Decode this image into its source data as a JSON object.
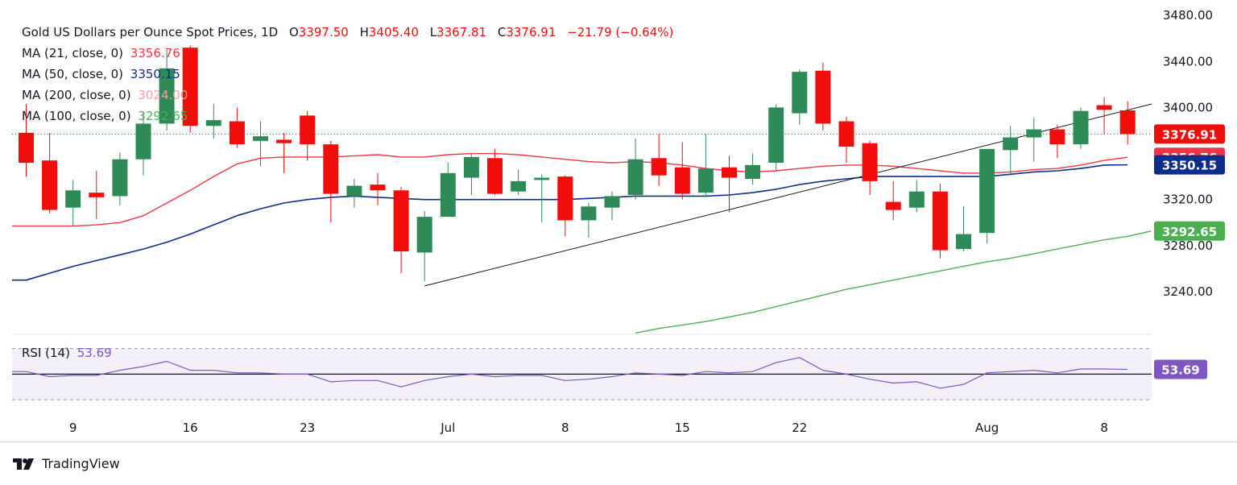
{
  "header": {
    "symbol": "Gold US Dollars per Ounce Spot Prices, 1D",
    "ohlc": {
      "o_label": "O",
      "o_value": "3397.50",
      "h_label": "H",
      "h_value": "3405.40",
      "l_label": "L",
      "l_value": "3367.81",
      "c_label": "C",
      "c_value": "3376.91",
      "change": "−21.79 (−0.64%)"
    }
  },
  "indicators": [
    {
      "label": "MA (21, close, 0)",
      "value": "3356.76",
      "color": "#f23645"
    },
    {
      "label": "MA (50, close, 0)",
      "value": "3350.15",
      "color": "#0d2d8c"
    },
    {
      "label": "MA (200, close, 0)",
      "value": "3024.00",
      "color": "#f7a1a8"
    },
    {
      "label": "MA (100, close, 0)",
      "value": "3292.65",
      "color": "#4caf50"
    }
  ],
  "rsi": {
    "label": "RSI (14)",
    "value": "53.69",
    "color": "#7e57c2"
  },
  "brand": {
    "name": "TradingView"
  },
  "colors": {
    "up": "#2e8b57",
    "down": "#f20d0d",
    "ma21": "#f23645",
    "ma50": "#0d2d8c",
    "ma100": "#4caf50",
    "rsi": "#7e57c2",
    "trendline": "#131722"
  },
  "chart_data": {
    "type": "candlestick",
    "y_axis": {
      "ticks": [
        "3480.00",
        "3440.00",
        "3400.00",
        "3320.00",
        "3280.00",
        "3240.00"
      ],
      "ylim": [
        3205,
        3485
      ],
      "position": "right"
    },
    "x_axis": {
      "ticks": [
        {
          "label": "9",
          "index": 2
        },
        {
          "label": "16",
          "index": 7
        },
        {
          "label": "23",
          "index": 12
        },
        {
          "label": "Jul",
          "index": 18
        },
        {
          "label": "8",
          "index": 23
        },
        {
          "label": "15",
          "index": 28
        },
        {
          "label": "22",
          "index": 33
        },
        {
          "label": "Aug",
          "index": 41
        },
        {
          "label": "8",
          "index": 46
        }
      ]
    },
    "price_labels": [
      {
        "text": "3376.91",
        "value": 3376.91,
        "color": "#f20d0d"
      },
      {
        "text": "3356.76",
        "value": 3356.76,
        "color": "#f23645"
      },
      {
        "text": "3350.15",
        "value": 3350.15,
        "color": "#0d2d8c"
      },
      {
        "text": "3292.65",
        "value": 3292.65,
        "color": "#4caf50"
      }
    ],
    "current_price": 3376.91,
    "candles": [
      {
        "o": 3378,
        "h": 3403,
        "l": 3340,
        "c": 3352
      },
      {
        "o": 3354,
        "h": 3378,
        "l": 3308,
        "c": 3311
      },
      {
        "o": 3313,
        "h": 3337,
        "l": 3297,
        "c": 3328
      },
      {
        "o": 3326,
        "h": 3345,
        "l": 3303,
        "c": 3322
      },
      {
        "o": 3323,
        "h": 3361,
        "l": 3315,
        "c": 3355
      },
      {
        "o": 3355,
        "h": 3396,
        "l": 3341,
        "c": 3386
      },
      {
        "o": 3386,
        "h": 3450,
        "l": 3380,
        "c": 3434
      },
      {
        "o": 3452,
        "h": 3454,
        "l": 3378,
        "c": 3384
      },
      {
        "o": 3384,
        "h": 3403,
        "l": 3373,
        "c": 3389
      },
      {
        "o": 3388,
        "h": 3400,
        "l": 3365,
        "c": 3368
      },
      {
        "o": 3371,
        "h": 3388,
        "l": 3349,
        "c": 3375
      },
      {
        "o": 3372,
        "h": 3378,
        "l": 3343,
        "c": 3369
      },
      {
        "o": 3393,
        "h": 3397,
        "l": 3354,
        "c": 3368
      },
      {
        "o": 3368,
        "h": 3371,
        "l": 3300,
        "c": 3325
      },
      {
        "o": 3323,
        "h": 3338,
        "l": 3313,
        "c": 3332
      },
      {
        "o": 3333,
        "h": 3343,
        "l": 3315,
        "c": 3328
      },
      {
        "o": 3328,
        "h": 3331,
        "l": 3256,
        "c": 3275
      },
      {
        "o": 3274,
        "h": 3310,
        "l": 3249,
        "c": 3305
      },
      {
        "o": 3305,
        "h": 3352,
        "l": 3305,
        "c": 3343
      },
      {
        "o": 3339,
        "h": 3360,
        "l": 3324,
        "c": 3357
      },
      {
        "o": 3356,
        "h": 3364,
        "l": 3324,
        "c": 3325
      },
      {
        "o": 3327,
        "h": 3346,
        "l": 3324,
        "c": 3336
      },
      {
        "o": 3337,
        "h": 3342,
        "l": 3300,
        "c": 3339
      },
      {
        "o": 3340,
        "h": 3341,
        "l": 3288,
        "c": 3302
      },
      {
        "o": 3302,
        "h": 3317,
        "l": 3287,
        "c": 3314
      },
      {
        "o": 3313,
        "h": 3327,
        "l": 3302,
        "c": 3323
      },
      {
        "o": 3324,
        "h": 3373,
        "l": 3320,
        "c": 3355
      },
      {
        "o": 3356,
        "h": 3377,
        "l": 3332,
        "c": 3341
      },
      {
        "o": 3348,
        "h": 3370,
        "l": 3320,
        "c": 3325
      },
      {
        "o": 3326,
        "h": 3377,
        "l": 3322,
        "c": 3347
      },
      {
        "o": 3348,
        "h": 3358,
        "l": 3309,
        "c": 3339
      },
      {
        "o": 3338,
        "h": 3360,
        "l": 3333,
        "c": 3350
      },
      {
        "o": 3352,
        "h": 3403,
        "l": 3345,
        "c": 3400
      },
      {
        "o": 3395,
        "h": 3433,
        "l": 3385,
        "c": 3431
      },
      {
        "o": 3432,
        "h": 3439,
        "l": 3380,
        "c": 3386
      },
      {
        "o": 3388,
        "h": 3392,
        "l": 3352,
        "c": 3366
      },
      {
        "o": 3369,
        "h": 3371,
        "l": 3324,
        "c": 3336
      },
      {
        "o": 3318,
        "h": 3336,
        "l": 3302,
        "c": 3311
      },
      {
        "o": 3313,
        "h": 3337,
        "l": 3309,
        "c": 3327
      },
      {
        "o": 3327,
        "h": 3334,
        "l": 3269,
        "c": 3276
      },
      {
        "o": 3277,
        "h": 3314,
        "l": 3275,
        "c": 3290
      },
      {
        "o": 3291,
        "h": 3364,
        "l": 3282,
        "c": 3364
      },
      {
        "o": 3363,
        "h": 3384,
        "l": 3341,
        "c": 3374
      },
      {
        "o": 3374,
        "h": 3391,
        "l": 3353,
        "c": 3381
      },
      {
        "o": 3381,
        "h": 3385,
        "l": 3356,
        "c": 3368
      },
      {
        "o": 3368,
        "h": 3400,
        "l": 3364,
        "c": 3397
      },
      {
        "o": 3402,
        "h": 3409,
        "l": 3377,
        "c": 3398
      },
      {
        "o": 3397.5,
        "h": 3405.4,
        "l": 3367.81,
        "c": 3376.91
      }
    ],
    "ma21": [
      3297,
      3297,
      3297,
      3298,
      3300,
      3306,
      3317,
      3328,
      3340,
      3351,
      3356,
      3357,
      3357,
      3357,
      3358,
      3359,
      3357,
      3357,
      3359,
      3360,
      3360,
      3359,
      3357,
      3355,
      3353,
      3352,
      3353,
      3352,
      3350,
      3347,
      3345,
      3344,
      3345,
      3347,
      3349,
      3350,
      3350,
      3349,
      3347,
      3345,
      3343,
      3343,
      3344,
      3346,
      3347,
      3350,
      3354,
      3356.76
    ],
    "ma50": [
      3250,
      3256,
      3262,
      3267,
      3272,
      3277,
      3283,
      3290,
      3298,
      3306,
      3312,
      3317,
      3320,
      3322,
      3323,
      3322,
      3321,
      3320,
      3320,
      3320,
      3320,
      3320,
      3320,
      3320,
      3321,
      3322,
      3323,
      3323,
      3323,
      3323,
      3324,
      3326,
      3329,
      3333,
      3336,
      3338,
      3340,
      3340,
      3340,
      3340,
      3340,
      3340,
      3342,
      3344,
      3345,
      3347,
      3350,
      3350.15
    ],
    "ma100": {
      "start_index": 26,
      "values": [
        3204,
        3208,
        3211,
        3214,
        3218,
        3222,
        3227,
        3232,
        3237,
        3242,
        3246,
        3250,
        3254,
        3258,
        3262,
        3266,
        3269,
        3273,
        3277,
        3281,
        3285,
        3288,
        3292.65
      ]
    },
    "trendline": {
      "from": {
        "index": 17,
        "value": 3245
      },
      "to": {
        "index": 48,
        "value": 3403
      }
    },
    "rsi": {
      "values": [
        52,
        48,
        49,
        49,
        53,
        56,
        60,
        53,
        53,
        51,
        51,
        50,
        50,
        44,
        45,
        45,
        40,
        45,
        48,
        50,
        48,
        49,
        49,
        45,
        46,
        48,
        51,
        50,
        49,
        52,
        51,
        52,
        59,
        63,
        53,
        50,
        46,
        43,
        44,
        39,
        42,
        51,
        52,
        53,
        51,
        54,
        54,
        53.69
      ],
      "ylim": [
        25,
        78
      ],
      "levels": [
        70,
        30
      ],
      "midline": 50,
      "band": [
        30,
        70
      ]
    }
  }
}
